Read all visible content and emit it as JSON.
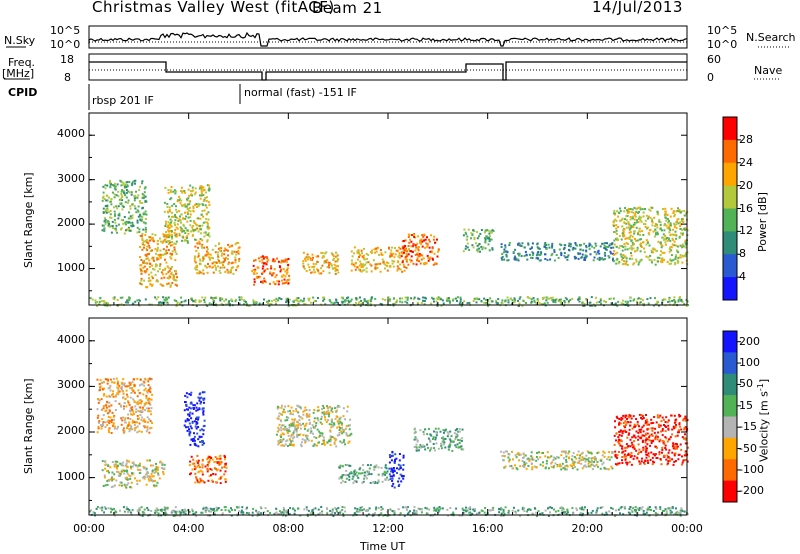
{
  "header": {
    "station": "Christmas Valley West (fitACF)",
    "beam": "Beam 21",
    "date": "14/Jul/2013"
  },
  "top_panels": {
    "nsky_label": "N.Sky",
    "nsky_ticks": [
      "10^5",
      "10^0"
    ],
    "nsearch_label": "N.Search",
    "nsearch_ticks": [
      "10^5",
      "10^0"
    ],
    "freq_label": "Freq.",
    "freq_unit": "[MHz]",
    "freq_ticks": [
      "18",
      "8"
    ],
    "nave_label": "Nave",
    "nave_ticks": [
      "60",
      "0"
    ],
    "cpid_label": "CPID",
    "cpid_segments": [
      "rbsp 201 IF",
      "normal (fast) -151 IF"
    ]
  },
  "chart_data": [
    {
      "type": "heatmap",
      "name": "power-panel",
      "ylabel": "Slant Range [km]",
      "xlim_hours": [
        0,
        24
      ],
      "ylim_km": [
        180,
        4500
      ],
      "y_ticks": [
        "1000",
        "2000",
        "3000",
        "4000"
      ],
      "colorbar": {
        "label": "Power [dB]",
        "ticks": [
          "4",
          "8",
          "12",
          "16",
          "20",
          "24",
          "28"
        ],
        "colors": [
          "#1414ff",
          "#2a5ad2",
          "#2f8c78",
          "#52b256",
          "#b4c83c",
          "#ffa500",
          "#ff6a00",
          "#ff0000"
        ]
      },
      "regions": [
        {
          "t0": 0.5,
          "t1": 2.3,
          "r0": 1800,
          "r1": 3000,
          "level": 3
        },
        {
          "t0": 2.0,
          "t1": 3.5,
          "r0": 600,
          "r1": 1800,
          "level": 5
        },
        {
          "t0": 3.0,
          "t1": 4.8,
          "r0": 1600,
          "r1": 2900,
          "level": 4
        },
        {
          "t0": 4.2,
          "t1": 6.0,
          "r0": 900,
          "r1": 1600,
          "level": 5
        },
        {
          "t0": 6.5,
          "t1": 8.0,
          "r0": 650,
          "r1": 1300,
          "level": 6
        },
        {
          "t0": 8.5,
          "t1": 10.0,
          "r0": 900,
          "r1": 1400,
          "level": 5
        },
        {
          "t0": 10.5,
          "t1": 12.8,
          "r0": 950,
          "r1": 1500,
          "level": 5
        },
        {
          "t0": 12.5,
          "t1": 14.0,
          "r0": 1100,
          "r1": 1800,
          "level": 6
        },
        {
          "t0": 15.0,
          "t1": 16.2,
          "r0": 1400,
          "r1": 1900,
          "level": 3
        },
        {
          "t0": 16.5,
          "t1": 21.0,
          "r0": 1200,
          "r1": 1600,
          "level": 2
        },
        {
          "t0": 21.0,
          "t1": 24.0,
          "r0": 1100,
          "r1": 2400,
          "level": 4
        },
        {
          "t0": 0.0,
          "t1": 24.0,
          "r0": 180,
          "r1": 380,
          "level": 3
        }
      ]
    },
    {
      "type": "heatmap",
      "name": "velocity-panel",
      "ylabel": "Slant Range [km]",
      "xlabel": "Time UT",
      "xlim_hours": [
        0,
        24
      ],
      "ylim_km": [
        180,
        4500
      ],
      "x_ticks": [
        "00:00",
        "04:00",
        "08:00",
        "12:00",
        "16:00",
        "20:00",
        "00:00"
      ],
      "y_ticks": [
        "1000",
        "2000",
        "3000",
        "4000"
      ],
      "colorbar": {
        "label": "Velocity [m s",
        "label_sup": "-1",
        "label_end": "]",
        "ticks": [
          "200",
          "100",
          "50",
          "15",
          "-15",
          "-50",
          "-100",
          "-200"
        ],
        "colors": [
          "#1414ff",
          "#2a5ad2",
          "#2f8c78",
          "#52b256",
          "#b4b4b4",
          "#ffa500",
          "#ff6a00",
          "#ff0000"
        ]
      },
      "regions": [
        {
          "t0": 0.3,
          "t1": 2.5,
          "r0": 2000,
          "r1": 3200,
          "level": 5
        },
        {
          "t0": 0.5,
          "t1": 3.0,
          "r0": 800,
          "r1": 1400,
          "level": 4
        },
        {
          "t0": 3.8,
          "t1": 4.6,
          "r0": 1700,
          "r1": 2900,
          "level": 0
        },
        {
          "t0": 4.0,
          "t1": 5.5,
          "r0": 900,
          "r1": 1500,
          "level": 6
        },
        {
          "t0": 7.5,
          "t1": 10.5,
          "r0": 1700,
          "r1": 2600,
          "level": 4
        },
        {
          "t0": 10.0,
          "t1": 12.0,
          "r0": 900,
          "r1": 1300,
          "level": 3
        },
        {
          "t0": 12.0,
          "t1": 12.6,
          "r0": 800,
          "r1": 1600,
          "level": 0
        },
        {
          "t0": 13.0,
          "t1": 15.0,
          "r0": 1600,
          "r1": 2100,
          "level": 3
        },
        {
          "t0": 16.5,
          "t1": 21.0,
          "r0": 1200,
          "r1": 1600,
          "level": 4
        },
        {
          "t0": 21.0,
          "t1": 24.0,
          "r0": 1300,
          "r1": 2400,
          "level": 7
        },
        {
          "t0": 0.0,
          "t1": 24.0,
          "r0": 180,
          "r1": 380,
          "level": 3
        }
      ]
    }
  ]
}
